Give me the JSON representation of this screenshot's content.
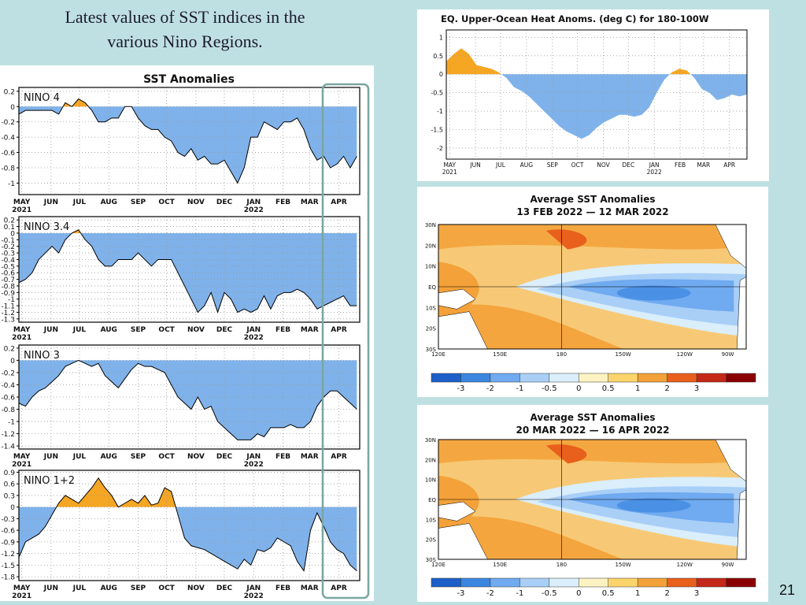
{
  "slide": {
    "title_line1": "Latest values of SST indices in the",
    "title_line2": "various Nino Regions.",
    "slide_number": "21"
  },
  "colors": {
    "warm": "#f5a623",
    "cool": "#7fb2ea",
    "line": "#000000",
    "grid": "#999999",
    "highlight_box": "#7aa6a0",
    "background": "#bfe0e3"
  },
  "chart_data": [
    {
      "type": "area",
      "title": "SST Anomalies",
      "x_tick_labels": [
        "MAY",
        "JUN",
        "JUL",
        "AUG",
        "SEP",
        "OCT",
        "NOV",
        "DEC",
        "JAN",
        "FEB",
        "MAR",
        "APR"
      ],
      "x_tick_years": {
        "MAY": "2021",
        "JAN": "2022"
      },
      "x": [
        "2021-04-28",
        "2021-05-05",
        "2021-05-12",
        "2021-05-19",
        "2021-05-26",
        "2021-06-02",
        "2021-06-09",
        "2021-06-16",
        "2021-06-23",
        "2021-06-30",
        "2021-07-07",
        "2021-07-14",
        "2021-07-21",
        "2021-07-28",
        "2021-08-04",
        "2021-08-11",
        "2021-08-18",
        "2021-08-25",
        "2021-09-01",
        "2021-09-08",
        "2021-09-15",
        "2021-09-22",
        "2021-09-29",
        "2021-10-06",
        "2021-10-13",
        "2021-10-20",
        "2021-10-27",
        "2021-11-03",
        "2021-11-10",
        "2021-11-17",
        "2021-11-24",
        "2021-12-01",
        "2021-12-08",
        "2021-12-15",
        "2021-12-22",
        "2021-12-29",
        "2022-01-05",
        "2022-01-12",
        "2022-01-19",
        "2022-01-26",
        "2022-02-02",
        "2022-02-09",
        "2022-02-16",
        "2022-02-23",
        "2022-03-02",
        "2022-03-09",
        "2022-03-16",
        "2022-03-23",
        "2022-03-30",
        "2022-04-06",
        "2022-04-13",
        "2022-04-20"
      ],
      "panels": [
        {
          "name": "NINO 4",
          "ylim": [
            -1.15,
            0.25
          ],
          "yticks": [
            "0.2",
            "0",
            "-0.2",
            "-0.4",
            "-0.6",
            "-0.8",
            "-1"
          ],
          "ytick_values": [
            0.2,
            0,
            -0.2,
            -0.4,
            -0.6,
            -0.8,
            -1
          ],
          "values": [
            -0.1,
            -0.05,
            -0.05,
            -0.05,
            -0.05,
            -0.05,
            -0.1,
            0.05,
            0,
            0.1,
            0.05,
            -0.05,
            -0.2,
            -0.2,
            -0.15,
            -0.15,
            0,
            0,
            -0.15,
            -0.25,
            -0.3,
            -0.3,
            -0.4,
            -0.45,
            -0.6,
            -0.65,
            -0.55,
            -0.7,
            -0.65,
            -0.75,
            -0.75,
            -0.7,
            -0.85,
            -1.0,
            -0.8,
            -0.4,
            -0.4,
            -0.2,
            -0.25,
            -0.3,
            -0.2,
            -0.2,
            -0.15,
            -0.3,
            -0.55,
            -0.7,
            -0.65,
            -0.8,
            -0.75,
            -0.65,
            -0.8,
            -0.65
          ]
        },
        {
          "name": "NINO 3.4",
          "ylim": [
            -1.35,
            0.25
          ],
          "yticks": [
            "0.2",
            "0.1",
            "0",
            "-0.1",
            "-0.2",
            "-0.3",
            "-0.4",
            "-0.5",
            "-0.6",
            "-0.7",
            "-0.8",
            "-0.9",
            "-1",
            "-1.1",
            "-1.2",
            "-1.3"
          ],
          "ytick_values": [
            0.2,
            0.1,
            0,
            -0.1,
            -0.2,
            -0.3,
            -0.4,
            -0.5,
            -0.6,
            -0.7,
            -0.8,
            -0.9,
            -1,
            -1.1,
            -1.2,
            -1.3
          ],
          "values": [
            -0.75,
            -0.7,
            -0.6,
            -0.4,
            -0.3,
            -0.2,
            -0.3,
            -0.1,
            0,
            0.05,
            -0.1,
            -0.2,
            -0.4,
            -0.5,
            -0.5,
            -0.4,
            -0.4,
            -0.4,
            -0.3,
            -0.4,
            -0.5,
            -0.4,
            -0.4,
            -0.4,
            -0.6,
            -0.8,
            -1.0,
            -1.2,
            -1.1,
            -0.9,
            -1.2,
            -0.9,
            -1.0,
            -1.2,
            -1.15,
            -1.2,
            -1.15,
            -0.95,
            -1.15,
            -0.95,
            -0.9,
            -0.9,
            -0.85,
            -0.9,
            -1.0,
            -1.15,
            -1.1,
            -1.05,
            -1.0,
            -0.95,
            -1.1,
            -1.1
          ]
        },
        {
          "name": "NINO 3",
          "ylim": [
            -1.45,
            0.25
          ],
          "yticks": [
            "0.2",
            "0",
            "-0.2",
            "-0.4",
            "-0.6",
            "-0.8",
            "-1",
            "-1.2",
            "-1.4"
          ],
          "ytick_values": [
            0.2,
            0,
            -0.2,
            -0.4,
            -0.6,
            -0.8,
            -1,
            -1.2,
            -1.4
          ],
          "values": [
            -0.7,
            -0.75,
            -0.6,
            -0.5,
            -0.45,
            -0.35,
            -0.25,
            -0.1,
            -0.05,
            0,
            -0.05,
            -0.1,
            -0.05,
            -0.25,
            -0.35,
            -0.45,
            -0.3,
            -0.15,
            -0.05,
            -0.1,
            -0.1,
            -0.15,
            -0.2,
            -0.4,
            -0.6,
            -0.7,
            -0.8,
            -0.6,
            -0.8,
            -0.75,
            -1.0,
            -1.1,
            -1.2,
            -1.3,
            -1.3,
            -1.3,
            -1.2,
            -1.25,
            -1.1,
            -1.1,
            -1.1,
            -1.05,
            -1.1,
            -1.1,
            -1.0,
            -0.75,
            -0.6,
            -0.5,
            -0.5,
            -0.6,
            -0.7,
            -0.8
          ]
        },
        {
          "name": "NINO 1+2",
          "ylim": [
            -1.9,
            0.95
          ],
          "yticks": [
            "0.9",
            "0.6",
            "0.3",
            "0",
            "-0.3",
            "-0.6",
            "-0.9",
            "-1.2",
            "-1.5",
            "-1.8"
          ],
          "ytick_values": [
            0.9,
            0.6,
            0.3,
            0,
            -0.3,
            -0.6,
            -0.9,
            -1.2,
            -1.5,
            -1.8
          ],
          "values": [
            -1.3,
            -0.9,
            -0.8,
            -0.7,
            -0.5,
            -0.2,
            0.1,
            0.3,
            0.2,
            0.1,
            0.3,
            0.5,
            0.75,
            0.5,
            0.3,
            0,
            0.1,
            0.2,
            0.1,
            0.3,
            0.05,
            0.1,
            0.5,
            0.4,
            -0.2,
            -0.8,
            -1.0,
            -1.05,
            -1.1,
            -1.2,
            -1.3,
            -1.4,
            -1.5,
            -1.6,
            -1.35,
            -1.5,
            -1.1,
            -1.15,
            -1.05,
            -0.8,
            -0.9,
            -1.0,
            -1.4,
            -1.65,
            -0.6,
            -0.15,
            -0.5,
            -0.9,
            -1.1,
            -1.2,
            -1.5,
            -1.65
          ]
        }
      ]
    },
    {
      "type": "area",
      "title": "EQ. Upper-Ocean Heat Anoms. (deg C) for 180-100W",
      "x_tick_labels": [
        "MAY",
        "JUN",
        "JUL",
        "AUG",
        "SEP",
        "OCT",
        "NOV",
        "DEC",
        "JAN",
        "FEB",
        "MAR",
        "APR"
      ],
      "x_tick_years": {
        "MAY": "2021",
        "JAN": "2022"
      },
      "ylim": [
        -2.3,
        1.2
      ],
      "yticks": [
        "1",
        "0.5",
        "0",
        "-0.5",
        "-1",
        "-1.5",
        "-2"
      ],
      "ytick_values": [
        1,
        0.5,
        0,
        -0.5,
        -1,
        -1.5,
        -2
      ],
      "x": [
        "2021-04-27",
        "2021-05-06",
        "2021-05-15",
        "2021-05-24",
        "2021-06-02",
        "2021-06-11",
        "2021-06-20",
        "2021-06-29",
        "2021-07-08",
        "2021-07-17",
        "2021-07-26",
        "2021-08-04",
        "2021-08-13",
        "2021-08-22",
        "2021-08-31",
        "2021-09-09",
        "2021-09-18",
        "2021-09-27",
        "2021-10-06",
        "2021-10-15",
        "2021-10-24",
        "2021-11-02",
        "2021-11-11",
        "2021-11-20",
        "2021-11-29",
        "2021-12-08",
        "2021-12-17",
        "2021-12-26",
        "2022-01-04",
        "2022-01-13",
        "2022-01-22",
        "2022-01-31",
        "2022-02-09",
        "2022-02-18",
        "2022-02-27",
        "2022-03-08",
        "2022-03-17",
        "2022-03-26",
        "2022-04-04",
        "2022-04-13",
        "2022-04-22"
      ],
      "values": [
        0.35,
        0.55,
        0.7,
        0.55,
        0.25,
        0.2,
        0.15,
        0.05,
        -0.1,
        -0.35,
        -0.45,
        -0.6,
        -0.8,
        -1.0,
        -1.2,
        -1.4,
        -1.55,
        -1.65,
        -1.75,
        -1.65,
        -1.45,
        -1.3,
        -1.2,
        -1.1,
        -1.1,
        -1.15,
        -1.1,
        -0.9,
        -0.5,
        -0.15,
        0.05,
        0.15,
        0.1,
        -0.1,
        -0.4,
        -0.5,
        -0.7,
        -0.65,
        -0.55,
        -0.6,
        -0.55
      ]
    },
    {
      "type": "heatmap",
      "title": "Average SST Anomalies",
      "subtitle": "13 FEB 2022 — 12 MAR 2022",
      "x_tick_labels": [
        "120E",
        "150E",
        "180",
        "150W",
        "120W",
        "90W"
      ],
      "y_tick_labels": [
        "30N",
        "20N",
        "10N",
        "EQ",
        "10S",
        "20S",
        "30S"
      ],
      "colorbar_ticks": [
        "-3",
        "-2",
        "-1",
        "-0.5",
        "0",
        "0.5",
        "1",
        "2",
        "3"
      ],
      "colorbar_colors": [
        "#1d5fc8",
        "#3a86df",
        "#70aaf0",
        "#a9cff7",
        "#daeefb",
        "#fdf3c2",
        "#fbd56b",
        "#f3a138",
        "#e8601c",
        "#c42818",
        "#8b0000"
      ]
    },
    {
      "type": "heatmap",
      "title": "Average SST Anomalies",
      "subtitle": "20 MAR 2022 — 16 APR 2022",
      "x_tick_labels": [
        "120E",
        "150E",
        "180",
        "150W",
        "120W",
        "90W"
      ],
      "y_tick_labels": [
        "30N",
        "20N",
        "10N",
        "EQ",
        "10S",
        "20S",
        "30S"
      ],
      "colorbar_ticks": [
        "-3",
        "-2",
        "-1",
        "-0.5",
        "0",
        "0.5",
        "1",
        "2",
        "3"
      ],
      "colorbar_colors": [
        "#1d5fc8",
        "#3a86df",
        "#70aaf0",
        "#a9cff7",
        "#daeefb",
        "#fdf3c2",
        "#fbd56b",
        "#f3a138",
        "#e8601c",
        "#c42818",
        "#8b0000"
      ]
    }
  ]
}
